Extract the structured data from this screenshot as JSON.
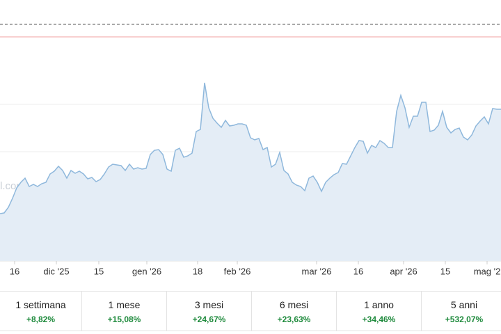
{
  "chart_data": {
    "type": "area",
    "watermark": "l.com",
    "color": "#8fb8dc",
    "x_tick_labels": [
      "16",
      "dic '25",
      "15",
      "gen '26",
      "18",
      "feb '26",
      "mar '26",
      "16",
      "apr '26",
      "15",
      "mag '2"
    ],
    "ylim": [
      0,
      375
    ],
    "values": [
      68,
      69,
      77,
      90,
      105,
      113,
      119,
      107,
      110,
      107,
      111,
      113,
      125,
      129,
      136,
      130,
      119,
      130,
      126,
      129,
      125,
      118,
      120,
      114,
      117,
      125,
      135,
      139,
      138,
      137,
      130,
      139,
      132,
      134,
      132,
      133,
      153,
      159,
      160,
      153,
      132,
      129,
      159,
      162,
      149,
      151,
      155,
      186,
      189,
      256,
      220,
      205,
      198,
      192,
      202,
      194,
      195,
      197,
      197,
      195,
      177,
      174,
      176,
      160,
      163,
      135,
      139,
      156,
      130,
      125,
      113,
      109,
      107,
      101,
      119,
      122,
      113,
      100,
      113,
      119,
      124,
      127,
      140,
      139,
      151,
      163,
      173,
      172,
      155,
      166,
      163,
      173,
      169,
      163,
      163,
      215,
      238,
      220,
      192,
      208,
      208,
      228,
      228,
      186,
      188,
      195,
      215,
      192,
      184,
      189,
      191,
      178,
      174,
      181,
      194,
      201,
      207,
      197,
      219,
      218,
      218
    ]
  },
  "periods": [
    {
      "label": "1 settimana",
      "change": "+8,82%"
    },
    {
      "label": "1 mese",
      "change": "+15,08%"
    },
    {
      "label": "3 mesi",
      "change": "+24,67%"
    },
    {
      "label": "6 mesi",
      "change": "+23,63%"
    },
    {
      "label": "1 anno",
      "change": "+34,46%"
    },
    {
      "label": "5 anni",
      "change": "+532,07%"
    }
  ]
}
